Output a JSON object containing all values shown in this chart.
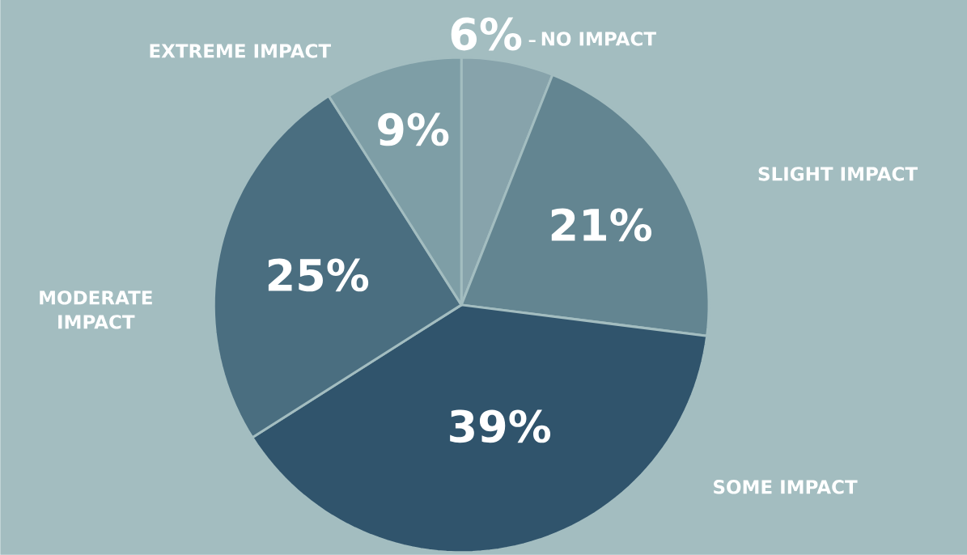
{
  "chart_data": {
    "type": "pie",
    "categories": [
      "NO IMPACT",
      "SLIGHT IMPACT",
      "SOME IMPACT",
      "MODERATE IMPACT",
      "EXTREME IMPACT"
    ],
    "values": [
      6,
      21,
      39,
      25,
      9
    ],
    "value_labels": [
      "6%",
      "21%",
      "39%",
      "25%",
      "9%"
    ],
    "colors": [
      "#87a3ab",
      "#638591",
      "#30546c",
      "#4a6e80",
      "#7e9ea6"
    ]
  }
}
